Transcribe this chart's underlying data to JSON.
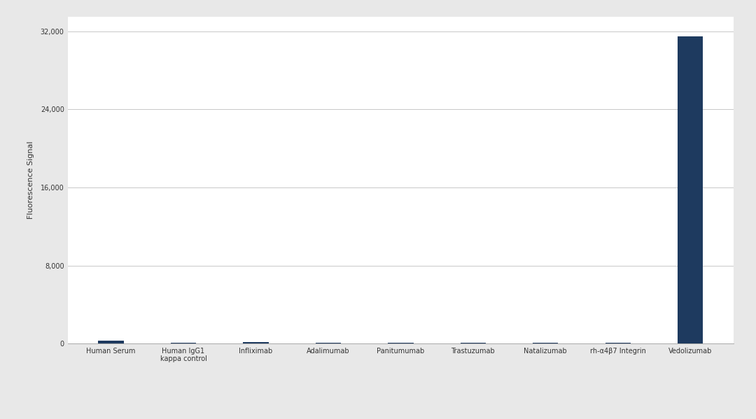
{
  "categories": [
    "Human Serum",
    "Human IgG1\nkappa control",
    "Infliximab",
    "Adalimumab",
    "Panitumumab",
    "Trastuzumab",
    "Natalizumab",
    "rh-α4β7 Integrin",
    "Vedolizumab"
  ],
  "values": [
    280,
    55,
    190,
    55,
    55,
    50,
    50,
    55,
    31500
  ],
  "bar_color": "#1e3a5f",
  "ylabel": "Fluorescence Signal",
  "yticks": [
    0,
    8000,
    16000,
    24000,
    32000
  ],
  "ytick_labels": [
    "0",
    "8,000",
    "16,000",
    "24,000",
    "32,000"
  ],
  "ylim": [
    0,
    33500
  ],
  "background_color": "#e8e8e8",
  "plot_bg_color": "#ffffff",
  "grid_color": "#c8c8c8",
  "ylabel_fontsize": 8,
  "tick_fontsize": 7,
  "bar_width": 0.35
}
